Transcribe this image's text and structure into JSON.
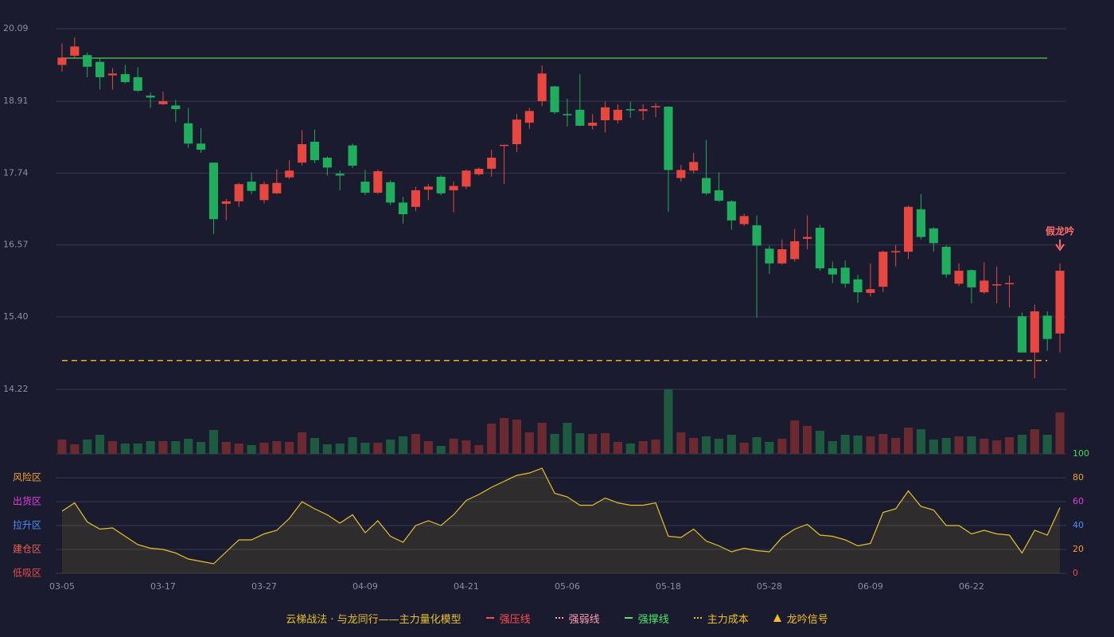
{
  "chart_data": {
    "type": "candlestick",
    "categories": [
      "03-05",
      null,
      null,
      null,
      null,
      null,
      null,
      null,
      "03-17",
      null,
      null,
      null,
      null,
      null,
      null,
      null,
      "03-27",
      null,
      null,
      null,
      null,
      null,
      null,
      null,
      "04-09",
      null,
      null,
      null,
      null,
      null,
      null,
      null,
      "04-21",
      null,
      null,
      null,
      null,
      null,
      null,
      null,
      "05-06",
      null,
      null,
      null,
      null,
      null,
      null,
      null,
      "05-18",
      null,
      null,
      null,
      null,
      null,
      null,
      null,
      "05-28",
      null,
      null,
      null,
      null,
      null,
      null,
      null,
      "06-09",
      null,
      null,
      null,
      null,
      null,
      null,
      null,
      "06-22",
      null,
      null,
      null,
      null,
      null,
      null,
      null
    ],
    "open": [
      19.5,
      19.65,
      19.66,
      19.55,
      19.33,
      19.35,
      19.3,
      19.0,
      18.86,
      18.84,
      18.55,
      18.22,
      17.91,
      17.24,
      17.28,
      17.6,
      17.3,
      17.41,
      17.67,
      17.91,
      18.25,
      17.99,
      17.73,
      18.19,
      17.6,
      17.42,
      17.59,
      17.26,
      17.19,
      17.47,
      17.68,
      17.46,
      17.52,
      17.72,
      17.81,
      18.19,
      18.21,
      18.56,
      18.91,
      19.15,
      18.7,
      18.77,
      18.51,
      18.6,
      18.6,
      18.78,
      18.75,
      18.81,
      18.82,
      17.66,
      17.78,
      17.66,
      17.46,
      17.28,
      16.91,
      16.89,
      16.51,
      16.27,
      16.34,
      16.67,
      16.85,
      16.19,
      16.2,
      16.01,
      15.79,
      15.89,
      16.45,
      16.46,
      17.15,
      16.84,
      16.54,
      15.94,
      16.16,
      15.8,
      15.92,
      15.94,
      15.41,
      14.82,
      15.42,
      15.13
    ],
    "high": [
      19.85,
      19.95,
      19.7,
      19.62,
      19.45,
      19.5,
      19.46,
      19.05,
      19.07,
      18.93,
      18.8,
      18.47,
      17.91,
      17.32,
      17.58,
      17.75,
      17.6,
      17.8,
      17.95,
      18.44,
      18.45,
      18.01,
      17.78,
      18.22,
      17.79,
      17.8,
      17.62,
      17.35,
      17.52,
      17.56,
      17.7,
      17.6,
      17.8,
      17.83,
      18.12,
      18.2,
      18.7,
      18.8,
      19.49,
      19.16,
      18.95,
      19.35,
      18.7,
      18.9,
      18.86,
      18.9,
      18.86,
      18.88,
      18.83,
      17.87,
      18.07,
      18.28,
      17.75,
      17.3,
      17.08,
      17.05,
      16.56,
      16.66,
      16.83,
      17.05,
      16.9,
      16.3,
      16.32,
      16.08,
      16.27,
      16.48,
      16.57,
      17.21,
      17.4,
      16.86,
      16.57,
      16.27,
      16.17,
      16.29,
      16.22,
      16.07,
      15.47,
      15.6,
      15.49,
      16.27
    ],
    "low": [
      19.39,
      19.6,
      19.3,
      19.1,
      19.1,
      19.2,
      19.06,
      18.8,
      18.85,
      18.57,
      18.15,
      18.07,
      16.75,
      16.97,
      17.19,
      17.4,
      17.25,
      17.4,
      17.64,
      17.86,
      17.9,
      17.7,
      17.46,
      17.82,
      17.38,
      17.4,
      17.22,
      16.92,
      17.12,
      17.3,
      17.38,
      17.1,
      17.48,
      17.7,
      17.68,
      17.56,
      18.08,
      18.46,
      18.83,
      18.7,
      18.5,
      18.5,
      18.45,
      18.4,
      18.55,
      18.64,
      18.6,
      18.65,
      17.11,
      17.6,
      17.74,
      17.38,
      17.27,
      16.82,
      16.88,
      15.39,
      16.1,
      16.25,
      16.3,
      16.5,
      16.15,
      15.95,
      15.88,
      15.63,
      15.73,
      15.8,
      16.22,
      16.34,
      16.66,
      16.46,
      16.04,
      15.9,
      15.62,
      15.77,
      15.62,
      15.55,
      14.82,
      14.4,
      14.85,
      14.82
    ],
    "close": [
      19.62,
      19.8,
      19.47,
      19.3,
      19.36,
      19.22,
      19.08,
      18.97,
      18.91,
      18.78,
      18.22,
      18.12,
      16.99,
      17.28,
      17.56,
      17.45,
      17.56,
      17.58,
      17.78,
      18.21,
      17.95,
      17.83,
      17.7,
      17.86,
      17.42,
      17.77,
      17.26,
      17.07,
      17.46,
      17.52,
      17.41,
      17.53,
      17.78,
      17.81,
      17.99,
      18.2,
      18.61,
      18.75,
      19.36,
      18.73,
      18.68,
      18.51,
      18.56,
      18.81,
      18.77,
      18.76,
      18.78,
      18.83,
      17.79,
      17.79,
      17.92,
      17.41,
      17.29,
      16.97,
      17.04,
      16.56,
      16.27,
      16.5,
      16.63,
      16.7,
      16.19,
      16.09,
      15.94,
      15.8,
      15.85,
      16.46,
      16.47,
      17.19,
      16.7,
      16.6,
      16.09,
      16.15,
      15.88,
      15.99,
      15.93,
      15.95,
      14.82,
      15.49,
      15.04,
      16.15
    ],
    "up_color": "#e8473f",
    "down_color": "#1fae5e",
    "ylim": [
      14.22,
      20.09
    ],
    "yticks": [
      20.09,
      18.91,
      17.74,
      16.57,
      {
        "value": 15.4,
        "label": "15.40"
      },
      14.22
    ],
    "grid": true,
    "levels": [
      {
        "value": 19.61,
        "color": "#4caf50",
        "style": "solid"
      },
      {
        "value": 14.69,
        "color": "#e6b422",
        "style": "dashed"
      }
    ],
    "annotation": {
      "text": "假龙吟",
      "color": "#ff6b6b"
    },
    "volume": {
      "values": [
        18,
        12,
        18,
        24,
        16,
        13,
        13,
        16,
        16,
        16,
        19,
        15,
        30,
        15,
        13,
        11,
        14,
        16,
        15,
        27,
        20,
        12,
        13,
        21,
        14,
        14,
        18,
        22,
        25,
        16,
        10,
        19,
        17,
        11,
        38,
        45,
        43,
        27,
        39,
        25,
        39,
        26,
        25,
        26,
        15,
        13,
        16,
        18,
        81,
        27,
        20,
        22,
        19,
        24,
        14,
        21,
        15,
        19,
        42,
        35,
        29,
        16,
        24,
        23,
        22,
        25,
        20,
        33,
        31,
        18,
        20,
        22,
        22,
        19,
        17,
        21,
        24,
        31,
        24,
        52
      ],
      "up_color": "#6b2a30",
      "down_color": "#1e5a40"
    },
    "indicator": {
      "type": "area",
      "color": "#e6c229",
      "values": [
        52,
        59,
        43,
        37,
        38,
        31,
        24,
        21,
        20,
        17,
        12,
        10,
        8,
        18,
        28,
        28,
        33,
        36,
        46,
        60,
        54,
        49,
        42,
        49,
        34,
        44,
        31,
        26,
        40,
        44,
        40,
        49,
        61,
        66,
        72,
        77,
        82,
        84,
        88,
        67,
        64,
        57,
        57,
        63,
        59,
        57,
        57,
        59,
        31,
        30,
        37,
        27,
        23,
        18,
        21,
        19,
        18,
        30,
        37,
        41,
        32,
        31,
        28,
        23,
        25,
        51,
        54,
        69,
        56,
        53,
        40,
        40,
        33,
        36,
        33,
        32,
        17,
        36,
        32,
        55
      ],
      "ylim": [
        0,
        100
      ],
      "yticks": [
        0,
        20,
        40,
        60,
        80,
        100
      ],
      "ytick_colors": [
        "#e84a4a",
        "#f0a030",
        "#4a90ff",
        "#e040e0",
        "#f0a030",
        "#3ddc5a"
      ],
      "zones": [
        {
          "label": "风险区",
          "value": 80,
          "color": "#f0a030"
        },
        {
          "label": "出货区",
          "value": 60,
          "color": "#e040e0"
        },
        {
          "label": "拉升区",
          "value": 40,
          "color": "#4a90ff"
        },
        {
          "label": "建仓区",
          "value": 20,
          "color": "#f06050"
        },
        {
          "label": "低吸区",
          "value": 0,
          "color": "#e84a4a"
        }
      ]
    },
    "legend": {
      "title": "云梯战法 · 与龙同行——主力量化模型",
      "title_color": "#e6c229",
      "items": [
        {
          "name": "强压线",
          "color": "#ff4d4d",
          "symbol": "line"
        },
        {
          "name": "强弱线",
          "color": "#ff9db0",
          "symbol": "dashed"
        },
        {
          "name": "强撑线",
          "color": "#4ee66a",
          "symbol": "line"
        },
        {
          "name": "主力成本",
          "color": "#f0c020",
          "symbol": "dashed"
        },
        {
          "name": "龙吟信号",
          "color": "#f0c020",
          "symbol": "triangle"
        }
      ]
    }
  }
}
